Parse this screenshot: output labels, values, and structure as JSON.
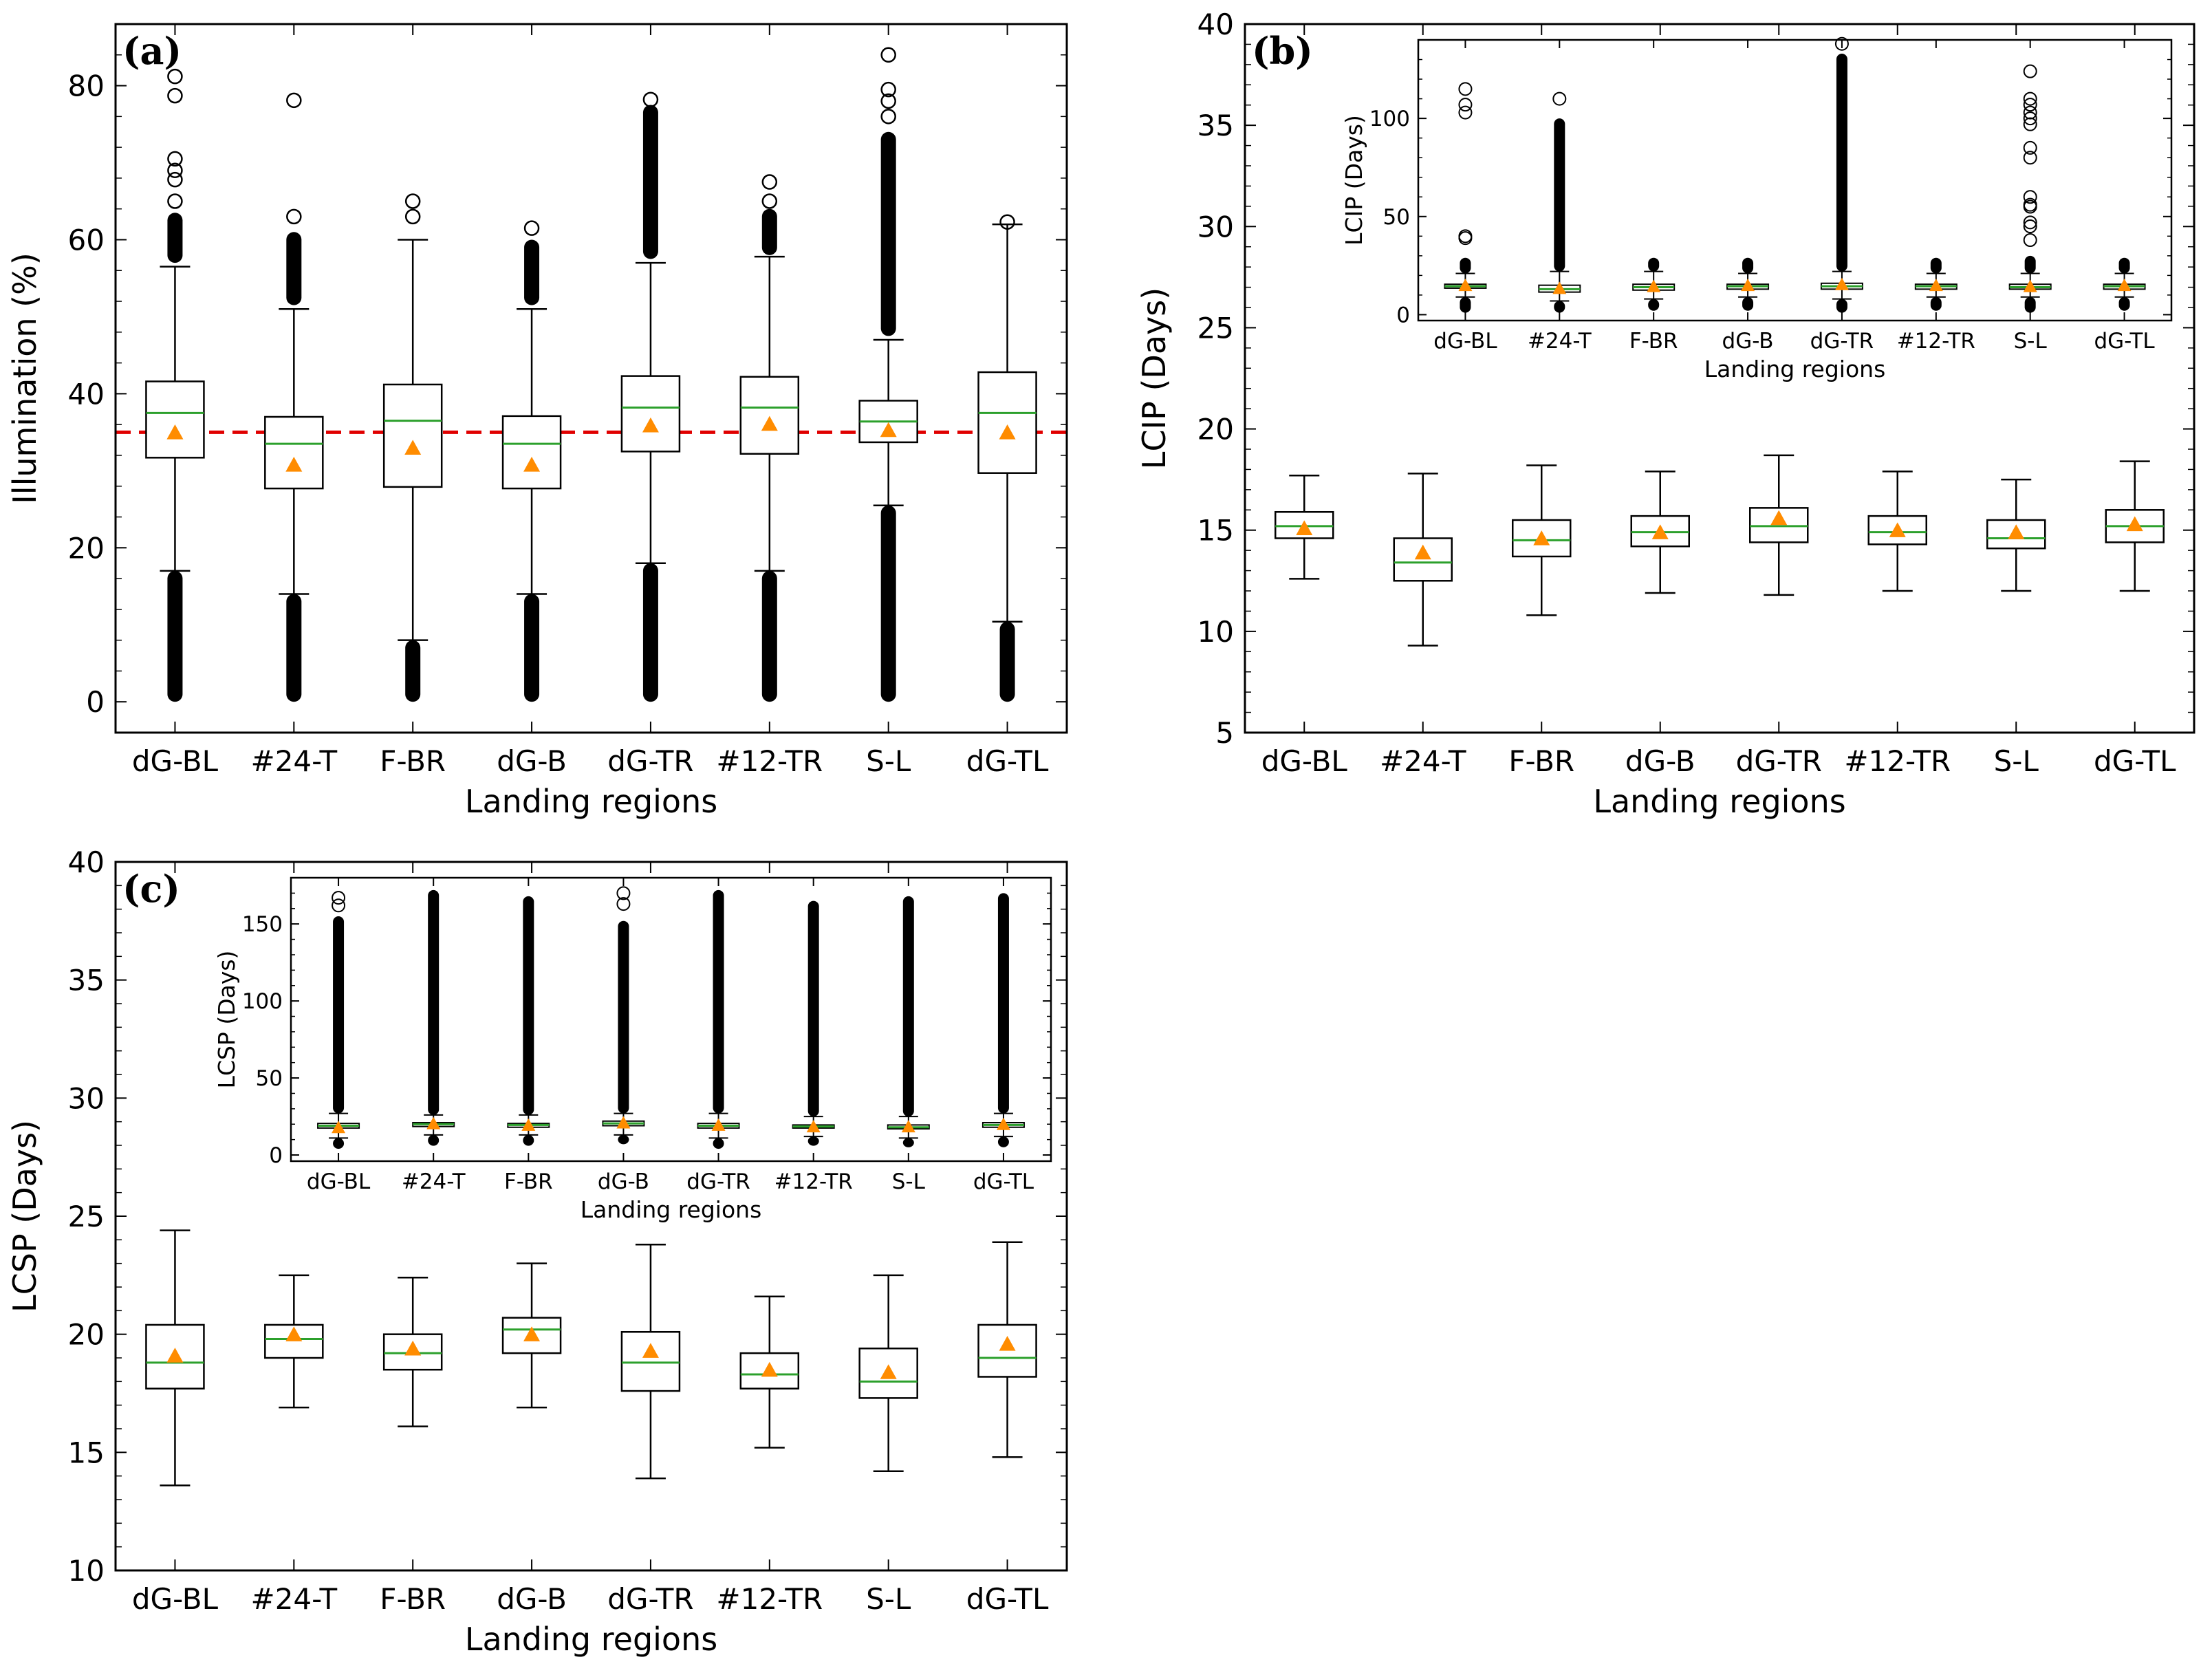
{
  "colors": {
    "median": "#2ca02c",
    "mean": "#ff8c00",
    "reference": "#e00000",
    "box": "#000000"
  },
  "chart_data": [
    {
      "type": "box",
      "panel_label": "(a)",
      "xlabel": "Landing regions",
      "ylabel": "Illumination (%)",
      "ylim": [
        -4,
        88
      ],
      "yticks": [
        "0",
        "20",
        "40",
        "60",
        "80"
      ],
      "reference_line": 35,
      "categories": [
        "dG-BL",
        "#24-T",
        "F-BR",
        "dG-B",
        "dG-TR",
        "#12-TR",
        "S-L",
        "dG-TL"
      ],
      "series": [
        {
          "name": "dG-BL",
          "whislo": 17,
          "q1": 31.7,
          "median": 37.5,
          "q3": 41.6,
          "whishi": 56.5,
          "mean": 35,
          "flier_low": [
            0,
            17
          ],
          "flier_high": [
            57,
            63.5
          ],
          "outliers": [
            65,
            67.8,
            69,
            70.5,
            78.7,
            81.2
          ]
        },
        {
          "name": "#24-T",
          "whislo": 14,
          "q1": 27.7,
          "median": 33.5,
          "q3": 37,
          "whishi": 51,
          "mean": 30.8,
          "flier_low": [
            0,
            14
          ],
          "flier_high": [
            51.5,
            61
          ],
          "outliers": [
            63,
            78.1
          ]
        },
        {
          "name": "F-BR",
          "whislo": 8,
          "q1": 27.9,
          "median": 36.5,
          "q3": 41.2,
          "whishi": 60,
          "mean": 33,
          "flier_low": [
            0,
            8
          ],
          "flier_high": null,
          "outliers": [
            63,
            65
          ]
        },
        {
          "name": "dG-B",
          "whislo": 14,
          "q1": 27.7,
          "median": 33.5,
          "q3": 37.1,
          "whishi": 51,
          "mean": 30.8,
          "flier_low": [
            0,
            14
          ],
          "flier_high": [
            51.5,
            60
          ],
          "outliers": [
            61.5
          ]
        },
        {
          "name": "dG-TR",
          "whislo": 18,
          "q1": 32.5,
          "median": 38.2,
          "q3": 42.3,
          "whishi": 57,
          "mean": 35.9,
          "flier_low": [
            0,
            18
          ],
          "flier_high": [
            57.5,
            77.5
          ],
          "outliers": [
            78.2
          ]
        },
        {
          "name": "#12-TR",
          "whislo": 17,
          "q1": 32.2,
          "median": 38.2,
          "q3": 42.2,
          "whishi": 57.8,
          "mean": 36.1,
          "flier_low": [
            0,
            17
          ],
          "flier_high": [
            58,
            64
          ],
          "outliers": [
            65,
            67.5
          ]
        },
        {
          "name": "S-L",
          "whislo": 25.5,
          "q1": 33.7,
          "median": 36.4,
          "q3": 39.1,
          "whishi": 47,
          "mean": 35.3,
          "flier_low": [
            0,
            25.5
          ],
          "flier_high": [
            47.5,
            74
          ],
          "outliers": [
            76,
            78,
            79.5,
            84
          ]
        },
        {
          "name": "dG-TL",
          "whislo": 10.4,
          "q1": 29.7,
          "median": 37.5,
          "q3": 42.8,
          "whishi": 62,
          "mean": 35,
          "flier_low": [
            0,
            10.4
          ],
          "flier_high": null,
          "outliers": [
            62.3
          ]
        }
      ]
    },
    {
      "type": "box",
      "panel_label": "(b)",
      "xlabel": "Landing regions",
      "ylabel": "LCIP (Days)",
      "ylim": [
        5,
        40
      ],
      "yticks": [
        "5",
        "10",
        "15",
        "20",
        "25",
        "30",
        "35",
        "40"
      ],
      "categories": [
        "dG-BL",
        "#24-T",
        "F-BR",
        "dG-B",
        "dG-TR",
        "#12-TR",
        "S-L",
        "dG-TL"
      ],
      "series": [
        {
          "name": "dG-BL",
          "whislo": 12.6,
          "q1": 14.6,
          "median": 15.2,
          "q3": 15.9,
          "whishi": 17.7,
          "mean": 15.1
        },
        {
          "name": "#24-T",
          "whislo": 9.3,
          "q1": 12.5,
          "median": 13.4,
          "q3": 14.6,
          "whishi": 17.8,
          "mean": 13.9
        },
        {
          "name": "F-BR",
          "whislo": 10.8,
          "q1": 13.7,
          "median": 14.5,
          "q3": 15.5,
          "whishi": 18.2,
          "mean": 14.6
        },
        {
          "name": "dG-B",
          "whislo": 11.9,
          "q1": 14.2,
          "median": 14.9,
          "q3": 15.7,
          "whishi": 17.9,
          "mean": 14.9
        },
        {
          "name": "dG-TR",
          "whislo": 11.8,
          "q1": 14.4,
          "median": 15.2,
          "q3": 16.1,
          "whishi": 18.7,
          "mean": 15.6
        },
        {
          "name": "#12-TR",
          "whislo": 12,
          "q1": 14.3,
          "median": 14.9,
          "q3": 15.7,
          "whishi": 17.9,
          "mean": 15
        },
        {
          "name": "S-L",
          "whislo": 12,
          "q1": 14.1,
          "median": 14.6,
          "q3": 15.5,
          "whishi": 17.5,
          "mean": 14.9
        },
        {
          "name": "dG-TL",
          "whislo": 12,
          "q1": 14.4,
          "median": 15.2,
          "q3": 16,
          "whishi": 18.4,
          "mean": 15.3
        }
      ],
      "inset": {
        "xlabel": "Landing regions",
        "ylabel": "LCIP (Days)",
        "ylim": [
          -3,
          140
        ],
        "yticks": [
          "0",
          "50",
          "100"
        ],
        "series": [
          {
            "name": "dG-BL",
            "whislo": 9,
            "q1": 13.5,
            "median": 14.5,
            "q3": 15.5,
            "whishi": 21,
            "mean": 15,
            "flier_low": [
              1,
              9
            ],
            "flier_high": [
              21,
              29
            ],
            "outliers": [
              39,
              40,
              103,
              107,
              115
            ]
          },
          {
            "name": "#24-T",
            "whislo": 7,
            "q1": 11.5,
            "median": 13,
            "q3": 15,
            "whishi": 22,
            "mean": 13.5,
            "flier_low": [
              1,
              7
            ],
            "flier_high": [
              22,
              100
            ],
            "outliers": [
              110
            ]
          },
          {
            "name": "F-BR",
            "whislo": 8,
            "q1": 12.5,
            "median": 14,
            "q3": 15.5,
            "whishi": 22,
            "mean": 14.5,
            "flier_low": [
              2,
              8
            ],
            "flier_high": [
              22,
              29
            ],
            "outliers": []
          },
          {
            "name": "dG-B",
            "whislo": 9,
            "q1": 13,
            "median": 14.5,
            "q3": 15.5,
            "whishi": 21,
            "mean": 15,
            "flier_low": [
              2,
              9
            ],
            "flier_high": [
              21,
              29
            ],
            "outliers": []
          },
          {
            "name": "dG-TR",
            "whislo": 8,
            "q1": 13,
            "median": 14.5,
            "q3": 16,
            "whishi": 22,
            "mean": 15.5,
            "flier_low": [
              1,
              8
            ],
            "flier_high": [
              22,
              133
            ],
            "outliers": [
              138
            ]
          },
          {
            "name": "#12-TR",
            "whislo": 9,
            "q1": 13,
            "median": 14.5,
            "q3": 15.5,
            "whishi": 21,
            "mean": 15,
            "flier_low": [
              2,
              9
            ],
            "flier_high": [
              21,
              29
            ],
            "outliers": []
          },
          {
            "name": "S-L",
            "whislo": 9,
            "q1": 13,
            "median": 14,
            "q3": 15.5,
            "whishi": 21,
            "mean": 14.5,
            "flier_low": [
              1,
              9
            ],
            "flier_high": [
              21,
              30
            ],
            "outliers": [
              38,
              45,
              47,
              55,
              56,
              60,
              80,
              85,
              97,
              100,
              103,
              107,
              110,
              124
            ]
          },
          {
            "name": "dG-TL",
            "whislo": 9,
            "q1": 13,
            "median": 14.5,
            "q3": 15.5,
            "whishi": 21,
            "mean": 15,
            "flier_low": [
              2,
              9
            ],
            "flier_high": [
              21,
              29
            ],
            "outliers": []
          }
        ]
      }
    },
    {
      "type": "box",
      "panel_label": "(c)",
      "xlabel": "Landing regions",
      "ylabel": "LCSP (Days)",
      "ylim": [
        10,
        40
      ],
      "yticks": [
        "10",
        "15",
        "20",
        "25",
        "30",
        "35",
        "40"
      ],
      "categories": [
        "dG-BL",
        "#24-T",
        "F-BR",
        "dG-B",
        "dG-TR",
        "#12-TR",
        "S-L",
        "dG-TL"
      ],
      "series": [
        {
          "name": "dG-BL",
          "whislo": 13.6,
          "q1": 17.7,
          "median": 18.8,
          "q3": 20.4,
          "whishi": 24.4,
          "mean": 19.1
        },
        {
          "name": "#24-T",
          "whislo": 16.9,
          "q1": 19.0,
          "median": 19.8,
          "q3": 20.4,
          "whishi": 22.5,
          "mean": 20.0
        },
        {
          "name": "F-BR",
          "whislo": 16.1,
          "q1": 18.5,
          "median": 19.2,
          "q3": 20.0,
          "whishi": 22.4,
          "mean": 19.4
        },
        {
          "name": "dG-B",
          "whislo": 16.9,
          "q1": 19.2,
          "median": 20.2,
          "q3": 20.7,
          "whishi": 23.0,
          "mean": 20.0
        },
        {
          "name": "dG-TR",
          "whislo": 13.9,
          "q1": 17.6,
          "median": 18.8,
          "q3": 20.1,
          "whishi": 23.8,
          "mean": 19.3
        },
        {
          "name": "#12-TR",
          "whislo": 15.2,
          "q1": 17.7,
          "median": 18.3,
          "q3": 19.2,
          "whishi": 21.6,
          "mean": 18.5
        },
        {
          "name": "S-L",
          "whislo": 14.2,
          "q1": 17.3,
          "median": 18.0,
          "q3": 19.4,
          "whishi": 22.5,
          "mean": 18.4
        },
        {
          "name": "dG-TL",
          "whislo": 14.8,
          "q1": 18.2,
          "median": 19.0,
          "q3": 20.4,
          "whishi": 23.9,
          "mean": 19.6
        }
      ],
      "inset": {
        "xlabel": "Landing regions",
        "ylabel": "LCSP (Days)",
        "ylim": [
          -4,
          180
        ],
        "yticks": [
          "0",
          "50",
          "100",
          "150"
        ],
        "series": [
          {
            "name": "dG-BL",
            "whislo": 11,
            "q1": 17.5,
            "median": 19,
            "q3": 20.5,
            "whishi": 27,
            "mean": 18,
            "flier_low": [
              4,
              11
            ],
            "flier_high": [
              27,
              155
            ],
            "outliers": [
              162,
              167
            ]
          },
          {
            "name": "#24-T",
            "whislo": 13,
            "q1": 18.5,
            "median": 20,
            "q3": 21,
            "whishi": 26,
            "mean": 20.5,
            "flier_low": [
              6,
              13
            ],
            "flier_high": [
              26,
              172
            ],
            "outliers": []
          },
          {
            "name": "F-BR",
            "whislo": 13,
            "q1": 18,
            "median": 19.5,
            "q3": 20.5,
            "whishi": 26,
            "mean": 19.5,
            "flier_low": [
              6,
              13
            ],
            "flier_high": [
              26,
              168
            ],
            "outliers": []
          },
          {
            "name": "dG-B",
            "whislo": 13,
            "q1": 19,
            "median": 20.5,
            "q3": 22,
            "whishi": 27,
            "mean": 21,
            "flier_low": [
              7,
              13
            ],
            "flier_high": [
              27,
              152
            ],
            "outliers": [
              163,
              170
            ]
          },
          {
            "name": "dG-TR",
            "whislo": 11,
            "q1": 17.5,
            "median": 19,
            "q3": 20.5,
            "whishi": 27,
            "mean": 19.5,
            "flier_low": [
              4,
              11
            ],
            "flier_high": [
              27,
              172
            ],
            "outliers": []
          },
          {
            "name": "#12-TR",
            "whislo": 12,
            "q1": 17.5,
            "median": 18.5,
            "q3": 19.5,
            "whishi": 25,
            "mean": 18.5,
            "flier_low": [
              6,
              12
            ],
            "flier_high": [
              25,
              165
            ],
            "outliers": []
          },
          {
            "name": "S-L",
            "whislo": 11,
            "q1": 17,
            "median": 18,
            "q3": 19.5,
            "whishi": 25,
            "mean": 18.5,
            "flier_low": [
              5,
              11
            ],
            "flier_high": [
              25,
              168
            ],
            "outliers": []
          },
          {
            "name": "dG-TL",
            "whislo": 12,
            "q1": 18,
            "median": 19.5,
            "q3": 21,
            "whishi": 27,
            "mean": 20,
            "flier_low": [
              5,
              12
            ],
            "flier_high": [
              27,
              170
            ],
            "outliers": []
          }
        ]
      }
    }
  ]
}
